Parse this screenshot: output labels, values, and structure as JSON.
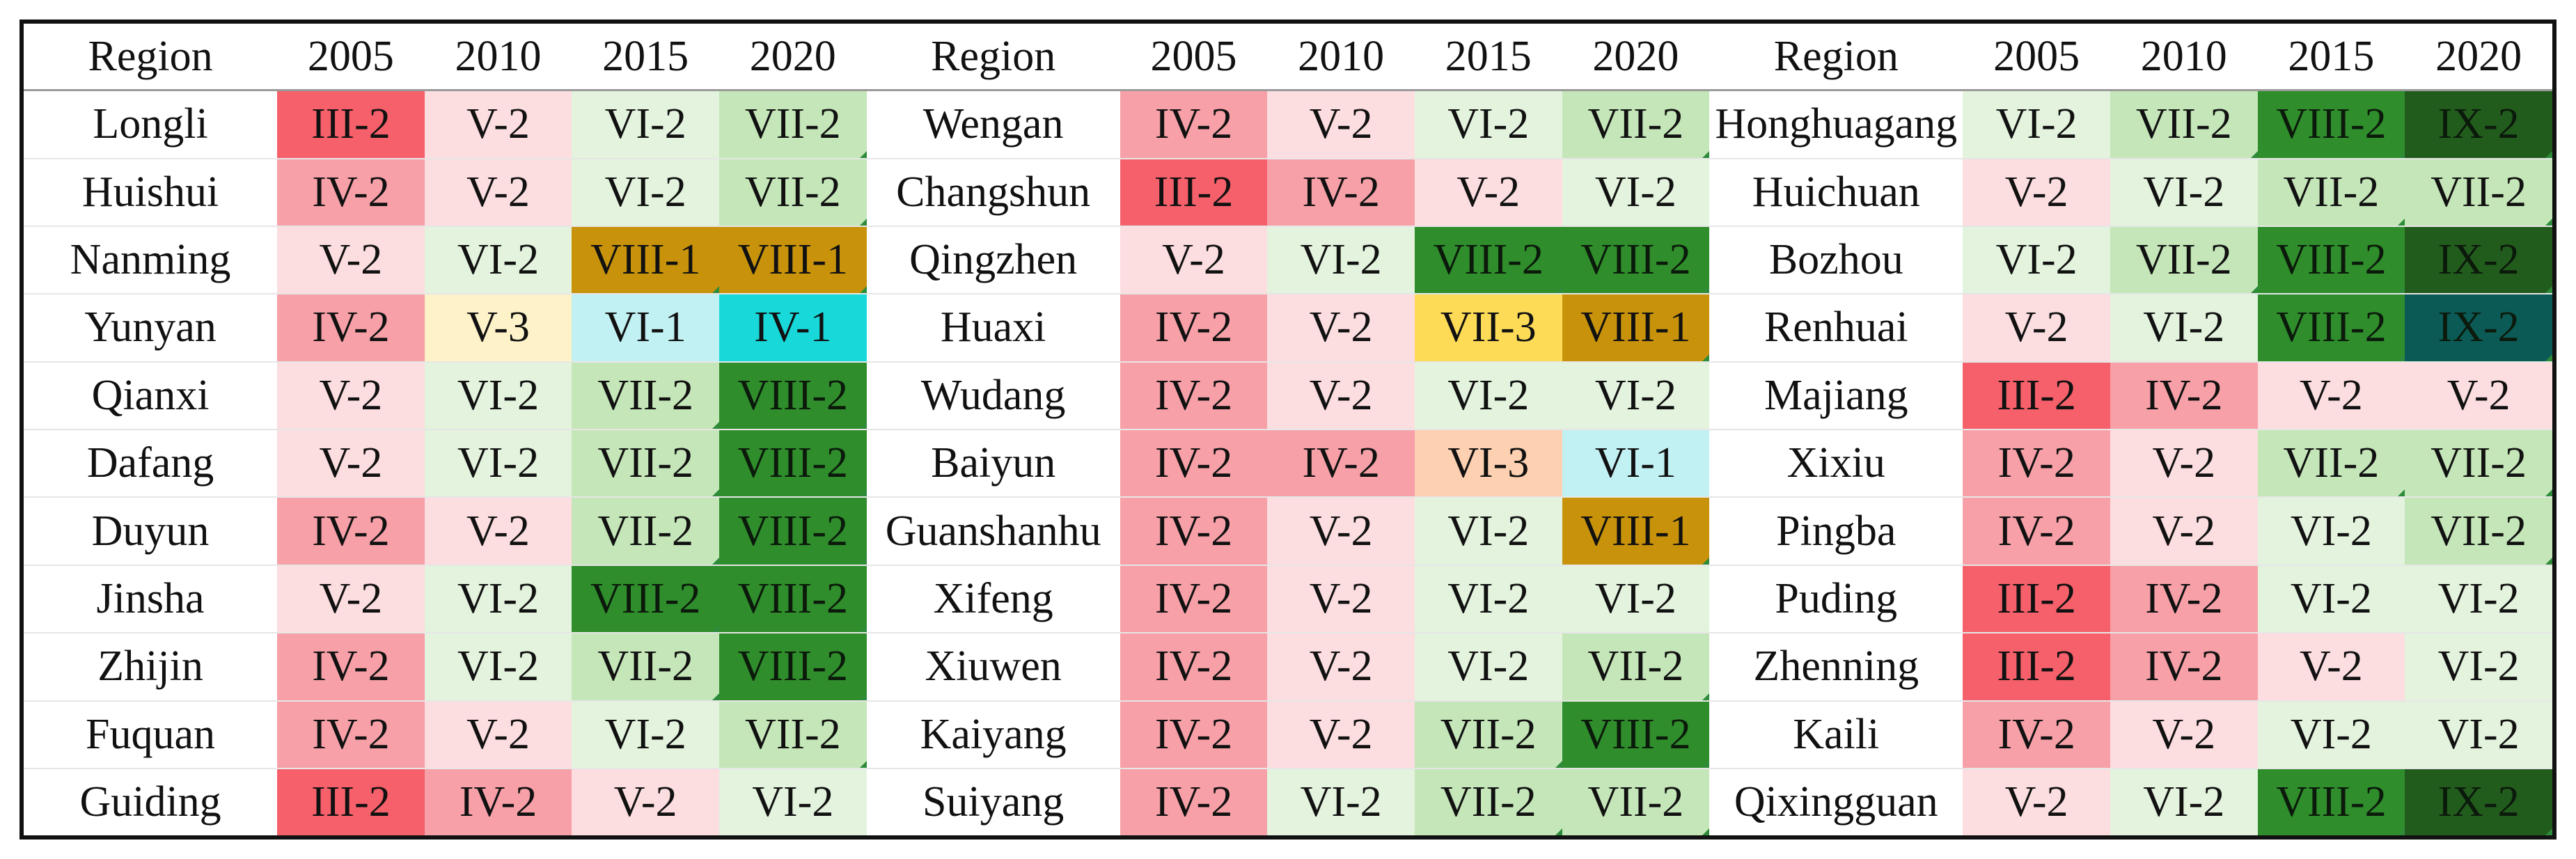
{
  "table": {
    "headers": [
      "Region",
      "2005",
      "2010",
      "2015",
      "2020",
      "Region",
      "2005",
      "2010",
      "2015",
      "2020",
      "Region",
      "2005",
      "2010",
      "2015",
      "2020"
    ],
    "rows": [
      [
        "Longli",
        "III-2",
        "V-2",
        "VI-2",
        "VII-2",
        "Wengan",
        "IV-2",
        "V-2",
        "VI-2",
        "VII-2",
        "Honghuagang",
        "VI-2",
        "VII-2",
        "VIII-2",
        "IX-2"
      ],
      [
        "Huishui",
        "IV-2",
        "V-2",
        "VI-2",
        "VII-2",
        "Changshun",
        "III-2",
        "IV-2",
        "V-2",
        "VI-2",
        "Huichuan",
        "V-2",
        "VI-2",
        "VII-2",
        "VII-2"
      ],
      [
        "Nanming",
        "V-2",
        "VI-2",
        "VIII-1",
        "VIII-1",
        "Qingzhen",
        "V-2",
        "VI-2",
        "VIII-2",
        "VIII-2",
        "Bozhou",
        "VI-2",
        "VII-2",
        "VIII-2",
        "IX-2"
      ],
      [
        "Yunyan",
        "IV-2",
        "V-3",
        "VI-1",
        "IV-1",
        "Huaxi",
        "IV-2",
        "V-2",
        "VII-3",
        "VIII-1",
        "Renhuai",
        "V-2",
        "VI-2",
        "VIII-2",
        "IX-2"
      ],
      [
        "Qianxi",
        "V-2",
        "VI-2",
        "VII-2",
        "VIII-2",
        "Wudang",
        "IV-2",
        "V-2",
        "VI-2",
        "VI-2",
        "Majiang",
        "III-2",
        "IV-2",
        "V-2",
        "V-2"
      ],
      [
        "Dafang",
        "V-2",
        "VI-2",
        "VII-2",
        "VIII-2",
        "Baiyun",
        "IV-2",
        "IV-2",
        "VI-3",
        "VI-1",
        "Xixiu",
        "IV-2",
        "V-2",
        "VII-2",
        "VII-2"
      ],
      [
        "Duyun",
        "IV-2",
        "V-2",
        "VII-2",
        "VIII-2",
        "Guanshanhu",
        "IV-2",
        "V-2",
        "VI-2",
        "VIII-1",
        "Pingba",
        "IV-2",
        "V-2",
        "VI-2",
        "VII-2"
      ],
      [
        "Jinsha",
        "V-2",
        "VI-2",
        "VIII-2",
        "VIII-2",
        "Xifeng",
        "IV-2",
        "V-2",
        "VI-2",
        "VI-2",
        "Puding",
        "III-2",
        "IV-2",
        "VI-2",
        "VI-2"
      ],
      [
        "Zhijin",
        "IV-2",
        "VI-2",
        "VII-2",
        "VIII-2",
        "Xiuwen",
        "IV-2",
        "V-2",
        "VI-2",
        "VII-2",
        "Zhenning",
        "III-2",
        "IV-2",
        "V-2",
        "VI-2"
      ],
      [
        "Fuquan",
        "IV-2",
        "V-2",
        "VI-2",
        "VII-2",
        "Kaiyang",
        "IV-2",
        "V-2",
        "VII-2",
        "VIII-2",
        "Kaili",
        "IV-2",
        "V-2",
        "VI-2",
        "VI-2"
      ],
      [
        "Guiding",
        "III-2",
        "IV-2",
        "V-2",
        "VI-2",
        "Suiyang",
        "IV-2",
        "VI-2",
        "VII-2",
        "VII-2",
        "Qixingguan",
        "V-2",
        "VI-2",
        "VIII-2",
        "IX-2"
      ]
    ]
  },
  "class_colors": {
    "III-2": "#f5606a",
    "IV-2": "#f7a0a8",
    "V-2": "#fcdde0",
    "V-3": "#fdf2c8",
    "VI-1": "#c2f1f4",
    "VI-2": "#e3f3dd",
    "VI-3": "#fcd0b0",
    "VII-2": "#c4e6b8",
    "VII-3": "#fedb56",
    "VIII-1": "#c8930b",
    "VIII-2": "#2f8d2c",
    "IX-2": "#225c1d",
    "IV-1": "#18d8da"
  },
  "cell_color_overrides": {
    "3-14": "#0b5a56"
  },
  "dark_text_classes": [
    "VIII-2",
    "IX-2"
  ]
}
